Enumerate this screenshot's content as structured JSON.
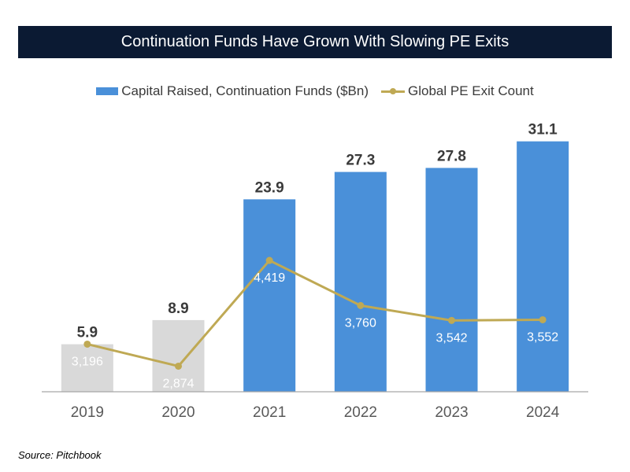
{
  "title": "Continuation Funds Have Grown With Slowing PE Exits",
  "source": "Source: Pitchbook",
  "colors": {
    "title_bg": "#0b1a33",
    "bar_blue": "#4a90d9",
    "bar_gray": "#d9d9d9",
    "line_gold": "#bfa954",
    "axis": "#a6a6a6"
  },
  "chart_data": {
    "type": "bar",
    "categories": [
      "2019",
      "2020",
      "2021",
      "2022",
      "2023",
      "2024"
    ],
    "series": [
      {
        "name": "Capital Raised, Continuation Funds ($Bn)",
        "type": "bar",
        "values": [
          5.9,
          8.9,
          23.9,
          27.3,
          27.8,
          31.1
        ],
        "labels": [
          "5.9",
          "8.9",
          "23.9",
          "27.3",
          "27.8",
          "31.1"
        ],
        "muted_categories": [
          "2019",
          "2020"
        ]
      },
      {
        "name": "Global PE Exit Count",
        "type": "line",
        "values": [
          3196,
          2874,
          4419,
          3760,
          3542,
          3552
        ],
        "labels": [
          "3,196",
          "2,874",
          "4,419",
          "3,760",
          "3,542",
          "3,552"
        ]
      }
    ],
    "bar_axis_range": [
      0,
      34
    ],
    "line_axis_range": [
      2500,
      6500
    ],
    "gridlines": false,
    "legend_position": "top-center"
  }
}
